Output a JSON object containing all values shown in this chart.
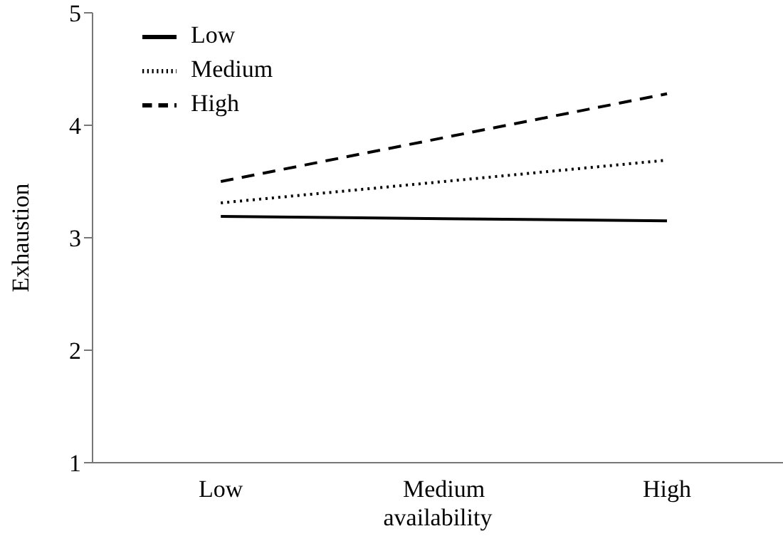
{
  "chart_data": {
    "type": "line",
    "xlabel": "availability",
    "ylabel": "Exhaustion",
    "categories": [
      "Low",
      "Medium",
      "High"
    ],
    "series": [
      {
        "name": "Low",
        "color": "#000000",
        "line_style": "solid",
        "values": [
          3.19,
          3.17,
          3.15
        ]
      },
      {
        "name": "Medium",
        "color": "#000000",
        "line_style": "dotted",
        "values": [
          3.31,
          3.5,
          3.69
        ]
      },
      {
        "name": "High",
        "color": "#000000",
        "line_style": "dashed",
        "values": [
          3.5,
          3.89,
          4.28
        ]
      }
    ],
    "ylim": [
      1,
      5
    ],
    "yticks": [
      1,
      2,
      3,
      4,
      5
    ],
    "grid": false,
    "legend": "top left",
    "marker": "none"
  }
}
